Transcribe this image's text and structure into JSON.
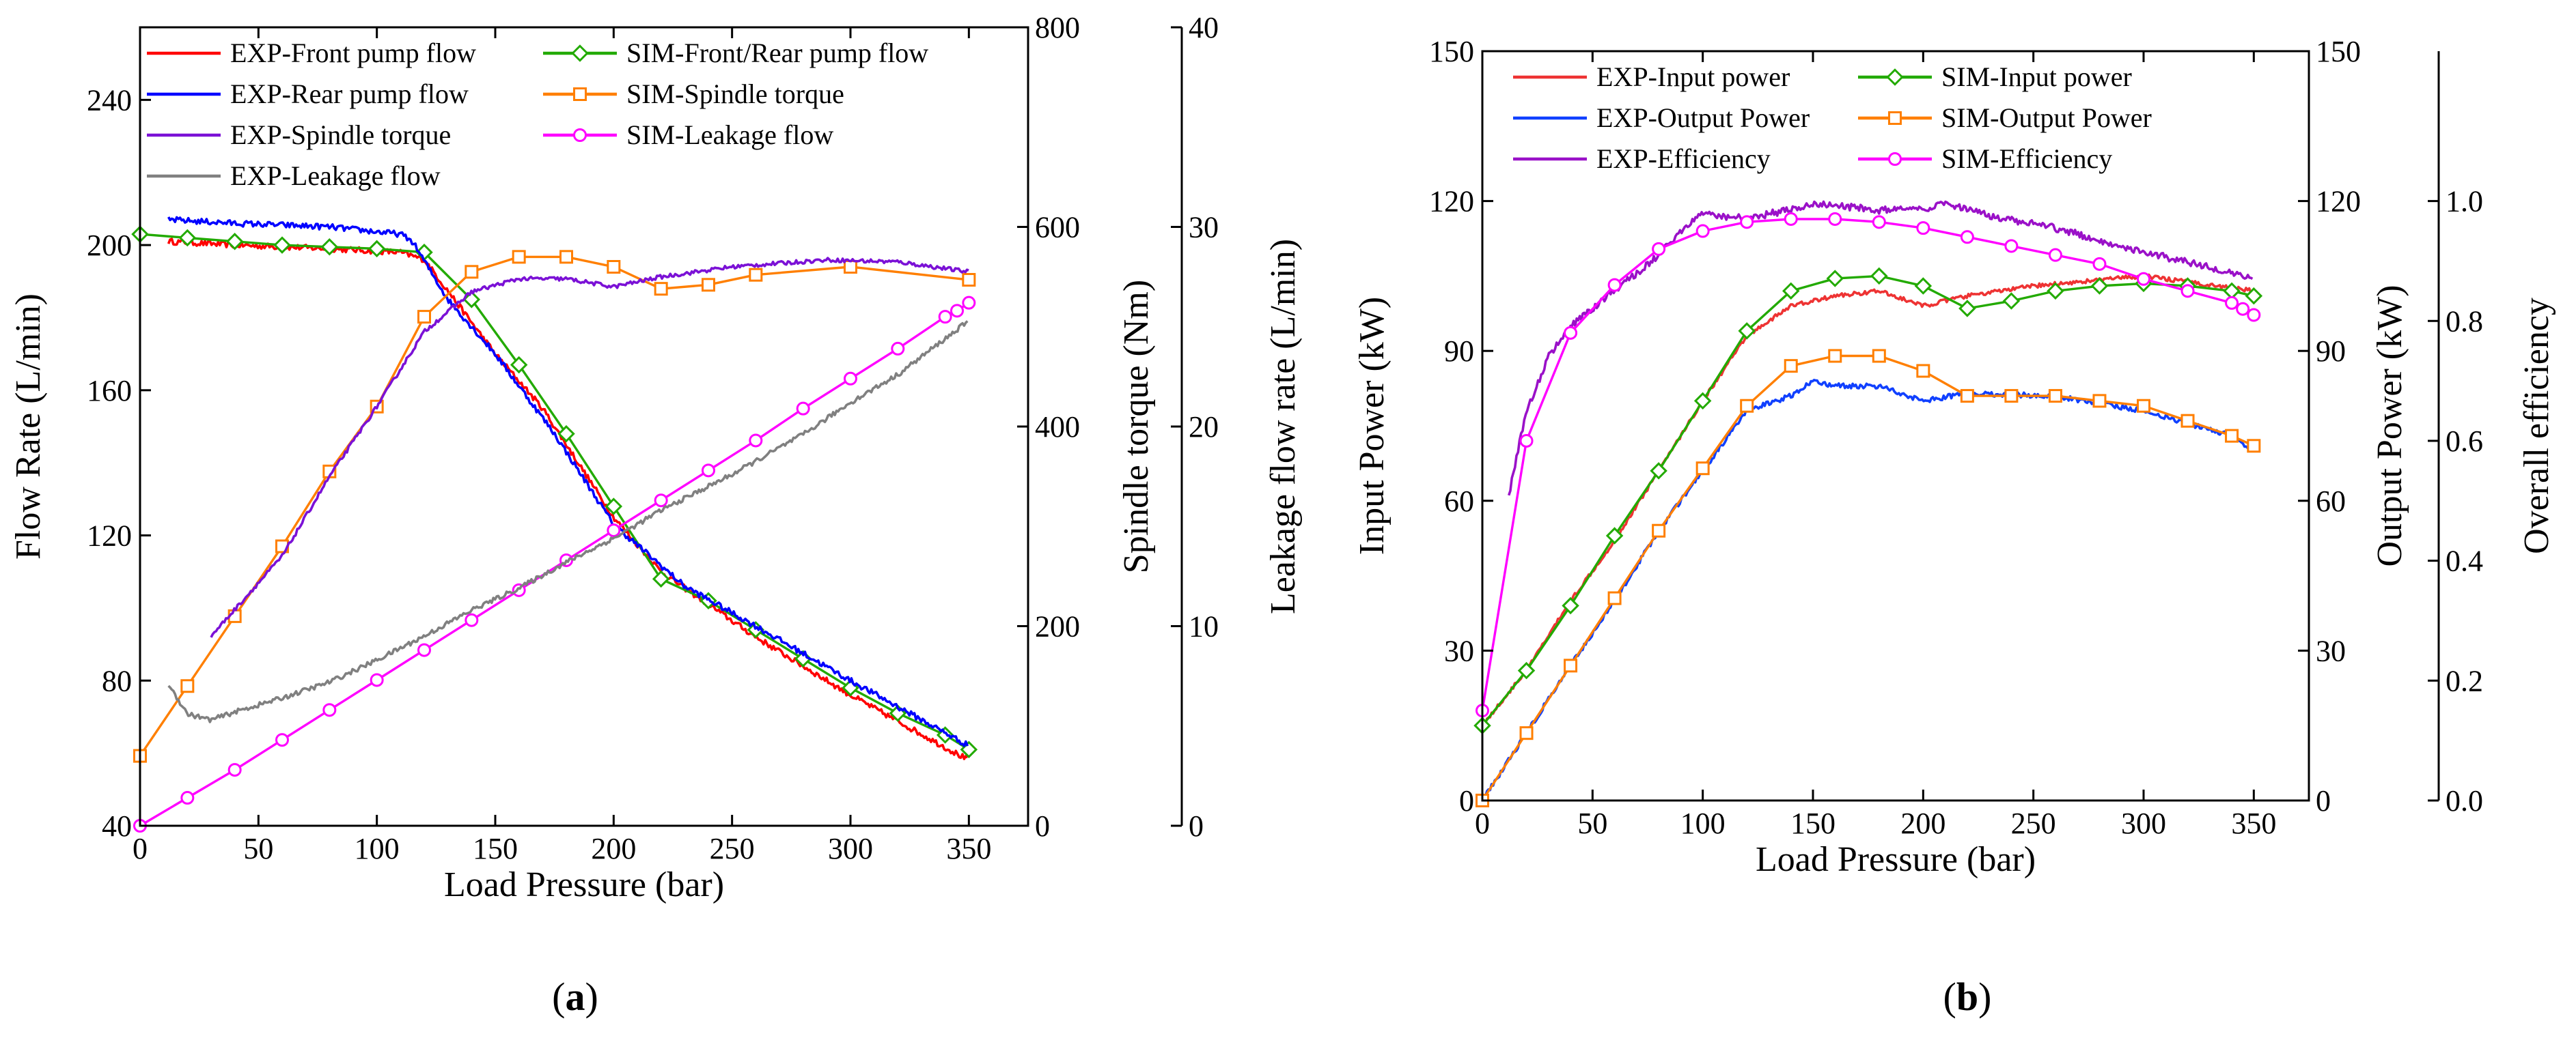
{
  "figure": {
    "panel_a_label": "a",
    "panel_b_label": "b"
  },
  "colors": {
    "exp_front": "#ff0000",
    "exp_rear": "#0000ff",
    "exp_spindle": "#7b11d6",
    "exp_leak": "#808080",
    "sim_flow": "#22aa00",
    "sim_torque": "#ff7f00",
    "sim_leak": "#ff00ff",
    "exp_input": "#ee3333",
    "sim_input": "#22aa00",
    "exp_output": "#1040ff",
    "sim_output": "#ff7f00",
    "exp_eff": "#9a11c8",
    "sim_eff": "#ff00ff"
  },
  "chart_data": [
    {
      "type": "line",
      "panel": "a",
      "xlabel": "Load Pressure (bar)",
      "xlim": [
        0,
        375
      ],
      "xticks": [
        0,
        50,
        100,
        150,
        200,
        250,
        300,
        350
      ],
      "axes": [
        {
          "key": "flow",
          "label": "Flow Rate (L/min)",
          "lim": [
            40,
            260
          ],
          "ticks": [
            40,
            80,
            120,
            160,
            200,
            240
          ]
        },
        {
          "key": "torque",
          "label": "Spindle torque (Nm)",
          "lim": [
            0,
            800
          ],
          "ticks": [
            0,
            200,
            400,
            600,
            800
          ]
        },
        {
          "key": "leak",
          "label": "Leakage flow rate (L/min)",
          "lim": [
            0,
            40
          ],
          "ticks": [
            0,
            10,
            20,
            30,
            40
          ]
        }
      ],
      "legend": [
        "EXP-Front pump flow",
        "SIM-Front/Rear pump flow",
        "EXP-Rear pump flow",
        "SIM-Spindle torque",
        "EXP-Spindle torque",
        "SIM-Leakage flow",
        "EXP-Leakage flow"
      ],
      "series": [
        {
          "name": "EXP-Front pump flow",
          "axis": "flow",
          "color_key": "exp_front",
          "marker": "none",
          "noise": 0.8,
          "x": [
            12,
            40,
            80,
            110,
            120,
            150,
            170,
            200,
            220,
            260,
            300,
            350
          ],
          "y": [
            201,
            200,
            199,
            198,
            196,
            170,
            155,
            125,
            110,
            92,
            76,
            58
          ]
        },
        {
          "name": "SIM-Front/Rear pump flow",
          "axis": "flow",
          "color_key": "sim_flow",
          "marker": "diamond",
          "x": [
            0,
            20,
            40,
            60,
            80,
            100,
            120,
            140,
            160,
            180,
            200,
            220,
            240,
            260,
            280,
            300,
            320,
            340,
            350
          ],
          "y": [
            203,
            202,
            201,
            200,
            199.5,
            199,
            198,
            185,
            167,
            148,
            128,
            108,
            102,
            94,
            86,
            78,
            71,
            65,
            61
          ]
        },
        {
          "name": "EXP-Rear pump flow",
          "axis": "flow",
          "color_key": "exp_rear",
          "marker": "none",
          "noise": 0.8,
          "x": [
            12,
            40,
            80,
            110,
            115,
            130,
            150,
            175,
            200,
            230,
            260,
            300,
            350
          ],
          "y": [
            207,
            206,
            205,
            203,
            201,
            185,
            170,
            148,
            123,
            106,
            95,
            80,
            62
          ]
        },
        {
          "name": "SIM-Spindle torque",
          "axis": "torque",
          "color_key": "sim_torque",
          "marker": "square",
          "x": [
            0,
            20,
            40,
            60,
            80,
            100,
            120,
            140,
            160,
            180,
            200,
            220,
            240,
            260,
            300,
            350
          ],
          "y": [
            70,
            140,
            210,
            280,
            355,
            420,
            510,
            555,
            570,
            570,
            560,
            538,
            542,
            552,
            560,
            547
          ]
        },
        {
          "name": "EXP-Spindle torque",
          "axis": "torque",
          "color_key": "exp_spindle",
          "marker": "none",
          "noise": 2,
          "x": [
            30,
            60,
            80,
            100,
            120,
            140,
            160,
            180,
            200,
            220,
            250,
            290,
            320,
            350
          ],
          "y": [
            190,
            270,
            350,
            420,
            495,
            535,
            548,
            548,
            540,
            550,
            560,
            567,
            565,
            555
          ]
        },
        {
          "name": "SIM-Leakage flow",
          "axis": "leak",
          "color_key": "sim_leak",
          "marker": "circle",
          "x": [
            0,
            20,
            40,
            60,
            80,
            100,
            120,
            140,
            160,
            180,
            200,
            220,
            240,
            260,
            280,
            300,
            320,
            340,
            345,
            350
          ],
          "y": [
            0,
            1.4,
            2.8,
            4.3,
            5.8,
            7.3,
            8.8,
            10.3,
            11.8,
            13.3,
            14.8,
            16.3,
            17.8,
            19.3,
            20.9,
            22.4,
            23.9,
            25.5,
            25.8,
            26.2
          ]
        },
        {
          "name": "EXP-Leakage flow",
          "axis": "leak",
          "color_key": "exp_leak",
          "marker": "none",
          "noise": 0.12,
          "x": [
            12,
            20,
            30,
            40,
            60,
            80,
            100,
            120,
            140,
            160,
            180,
            200,
            220,
            250,
            280,
            300,
            320,
            340,
            350
          ],
          "y": [
            7.1,
            5.6,
            5.3,
            5.7,
            6.4,
            7.2,
            8.3,
            9.5,
            10.8,
            11.9,
            13.2,
            14.4,
            15.8,
            17.6,
            19.6,
            21.2,
            22.6,
            24.4,
            25.3
          ]
        }
      ]
    },
    {
      "type": "line",
      "panel": "b",
      "xlabel": "Load Pressure (bar)",
      "xlim": [
        0,
        375
      ],
      "xticks": [
        0,
        50,
        100,
        150,
        200,
        250,
        300,
        350
      ],
      "axes": [
        {
          "key": "input",
          "label": "Input Power (kW)",
          "lim": [
            0,
            150
          ],
          "ticks": [
            0,
            30,
            60,
            90,
            120,
            150
          ]
        },
        {
          "key": "output",
          "label": "Output Power (kW)",
          "lim": [
            0,
            150
          ],
          "ticks": [
            0,
            30,
            60,
            90,
            120,
            150
          ]
        },
        {
          "key": "eff",
          "label": "Overall efficiency",
          "lim": [
            0,
            1.25
          ],
          "ticks": [
            0.0,
            0.2,
            0.4,
            0.6,
            0.8,
            1.0
          ],
          "tick_labels": [
            "0.0",
            "0.2",
            "0.4",
            "0.6",
            "0.8",
            "1.0"
          ]
        }
      ],
      "legend": [
        "EXP-Input power",
        "SIM-Input power",
        "EXP-Output Power",
        "SIM-Output Power",
        "EXP-Efficiency",
        "SIM-Efficiency"
      ],
      "series": [
        {
          "name": "EXP-Input power",
          "axis": "input",
          "color_key": "exp_input",
          "marker": "none",
          "noise": 0.4,
          "x": [
            0,
            20,
            40,
            60,
            80,
            100,
            120,
            140,
            160,
            180,
            200,
            220,
            250,
            300,
            350
          ],
          "y": [
            15,
            26,
            40,
            52,
            66,
            80,
            93,
            99,
            101,
            102,
            99,
            101,
            103,
            105,
            102
          ]
        },
        {
          "name": "SIM-Input power",
          "axis": "input",
          "color_key": "sim_input",
          "marker": "diamond",
          "x": [
            0,
            20,
            40,
            60,
            80,
            100,
            120,
            140,
            160,
            180,
            200,
            220,
            240,
            260,
            280,
            300,
            320,
            340,
            350
          ],
          "y": [
            15,
            26,
            39,
            53,
            66,
            80,
            94,
            102,
            104.5,
            105,
            103,
            98.5,
            100,
            102,
            103,
            103.5,
            103,
            102,
            101
          ]
        },
        {
          "name": "EXP-Output Power",
          "axis": "output",
          "color_key": "exp_output",
          "marker": "none",
          "noise": 0.5,
          "x": [
            0,
            20,
            40,
            60,
            80,
            100,
            120,
            140,
            150,
            160,
            180,
            200,
            220,
            260,
            300,
            340,
            350
          ],
          "y": [
            0,
            13.5,
            27,
            40,
            54,
            66,
            78,
            81,
            84,
            83,
            83,
            80,
            81.5,
            81,
            78,
            73,
            70
          ]
        },
        {
          "name": "SIM-Output Power",
          "axis": "output",
          "color_key": "sim_output",
          "marker": "square",
          "x": [
            0,
            20,
            40,
            60,
            80,
            100,
            120,
            140,
            160,
            180,
            200,
            220,
            240,
            260,
            280,
            300,
            320,
            340,
            350
          ],
          "y": [
            0,
            13.5,
            27,
            40.5,
            54,
            66.5,
            79,
            87,
            89,
            89,
            86,
            81,
            81,
            81,
            80,
            79,
            76,
            73,
            71
          ]
        },
        {
          "name": "EXP-Efficiency",
          "axis": "eff",
          "color_key": "exp_eff",
          "marker": "none",
          "noise": 0.006,
          "x": [
            12,
            20,
            30,
            40,
            60,
            80,
            90,
            100,
            120,
            150,
            180,
            200,
            210,
            230,
            260,
            300,
            330,
            350
          ],
          "y": [
            0.51,
            0.65,
            0.74,
            0.79,
            0.85,
            0.91,
            0.95,
            0.98,
            0.97,
            0.995,
            0.985,
            0.985,
            0.995,
            0.975,
            0.955,
            0.915,
            0.89,
            0.87
          ]
        },
        {
          "name": "SIM-Efficiency",
          "axis": "eff",
          "color_key": "sim_eff",
          "marker": "circle",
          "x": [
            0,
            20,
            40,
            60,
            80,
            100,
            120,
            140,
            160,
            180,
            200,
            220,
            240,
            260,
            280,
            300,
            320,
            340,
            345,
            350
          ],
          "y": [
            0.15,
            0.6,
            0.78,
            0.86,
            0.92,
            0.95,
            0.965,
            0.97,
            0.97,
            0.965,
            0.955,
            0.94,
            0.925,
            0.91,
            0.895,
            0.87,
            0.85,
            0.83,
            0.82,
            0.81
          ]
        }
      ]
    }
  ]
}
